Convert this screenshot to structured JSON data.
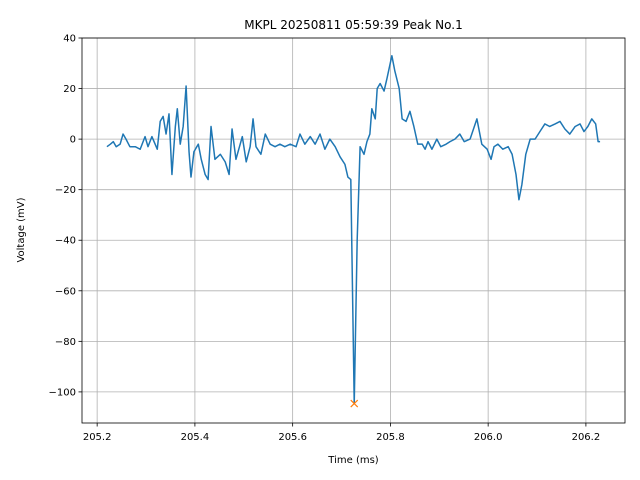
{
  "chart_data": {
    "type": "line",
    "title": "MKPL 20250811 05:59:39 Peak No.1",
    "xlabel": "Time (ms)",
    "ylabel": "Voltage (mV)",
    "grid": true,
    "xlim": [
      205.169,
      206.28
    ],
    "ylim": [
      -112.3,
      40
    ],
    "xticks": [
      205.2,
      205.4,
      205.6,
      205.8,
      {
        "value": 206,
        "label": "206.0"
      },
      206.2
    ],
    "yticks": [
      {
        "value": -100,
        "label": "−100"
      },
      {
        "value": -80,
        "label": "−80"
      },
      {
        "value": -60,
        "label": "−60"
      },
      {
        "value": -40,
        "label": "−40"
      },
      {
        "value": -20,
        "label": "−20"
      },
      0,
      20,
      40
    ],
    "color": "#1f77b4",
    "x": [
      205.22,
      205.227,
      205.233,
      205.239,
      205.247,
      205.253,
      205.259,
      205.267,
      205.278,
      205.288,
      205.298,
      205.304,
      205.312,
      205.323,
      205.329,
      205.335,
      205.341,
      205.347,
      205.353,
      205.36,
      205.364,
      205.37,
      205.376,
      205.382,
      205.388,
      205.392,
      205.398,
      205.407,
      205.413,
      205.421,
      205.427,
      205.433,
      205.441,
      205.452,
      205.462,
      205.47,
      205.476,
      205.484,
      205.497,
      205.505,
      205.513,
      205.519,
      205.525,
      205.535,
      205.544,
      205.554,
      205.564,
      205.574,
      205.584,
      205.595,
      205.607,
      205.615,
      205.625,
      205.636,
      205.646,
      205.656,
      205.666,
      205.676,
      205.687,
      205.697,
      205.707,
      205.713,
      205.719,
      205.726,
      205.732,
      205.738,
      205.746,
      205.752,
      205.758,
      205.762,
      205.769,
      205.773,
      205.779,
      205.787,
      205.793,
      205.803,
      205.809,
      205.818,
      205.824,
      205.832,
      205.84,
      205.848,
      205.856,
      205.865,
      205.871,
      205.877,
      205.885,
      205.895,
      205.903,
      205.914,
      205.922,
      205.932,
      205.942,
      205.951,
      205.963,
      205.977,
      205.987,
      205.998,
      206.006,
      206.012,
      206.02,
      206.03,
      206.041,
      206.049,
      206.057,
      206.063,
      206.069,
      206.077,
      206.086,
      206.096,
      206.106,
      206.116,
      206.126,
      206.137,
      206.147,
      206.157,
      206.167,
      206.178,
      206.188,
      206.196,
      206.204,
      206.212,
      206.22,
      206.225,
      206.229
    ],
    "values": [
      -3,
      -2,
      -1,
      -3,
      -2,
      2,
      0,
      -3,
      -3,
      -4,
      1,
      -3,
      1,
      -4,
      7,
      9,
      2,
      10,
      -14,
      5,
      12,
      -2,
      5,
      21,
      -5,
      -15,
      -5,
      -2,
      -8,
      -14,
      -16,
      5,
      -8,
      -6,
      -9,
      -14,
      4,
      -8,
      1,
      -9,
      -3,
      8,
      -3,
      -6,
      2,
      -2,
      -3,
      -2,
      -3,
      -2,
      -3,
      2,
      -2,
      1,
      -2,
      2,
      -4,
      0,
      -3,
      -7,
      -10,
      -15,
      -16,
      -104.6,
      -40,
      -3,
      -6,
      -1,
      2,
      12,
      8,
      20,
      22,
      19,
      24,
      33,
      27,
      20,
      8,
      7,
      11,
      5,
      -2,
      -2,
      -4,
      -1,
      -4,
      0,
      -3,
      -2,
      -1,
      0,
      2,
      -1,
      0,
      8,
      -2,
      -4,
      -8,
      -3,
      -2,
      -4,
      -3,
      -6,
      -14,
      -24,
      -18,
      -6,
      0,
      0,
      3,
      6,
      5,
      6,
      7,
      4,
      2,
      5,
      6,
      3,
      5,
      8,
      6,
      -1,
      -1
    ],
    "peak": {
      "x": [
        205.726
      ],
      "values": [
        -104.6
      ],
      "color": "#ff7f0e"
    }
  }
}
